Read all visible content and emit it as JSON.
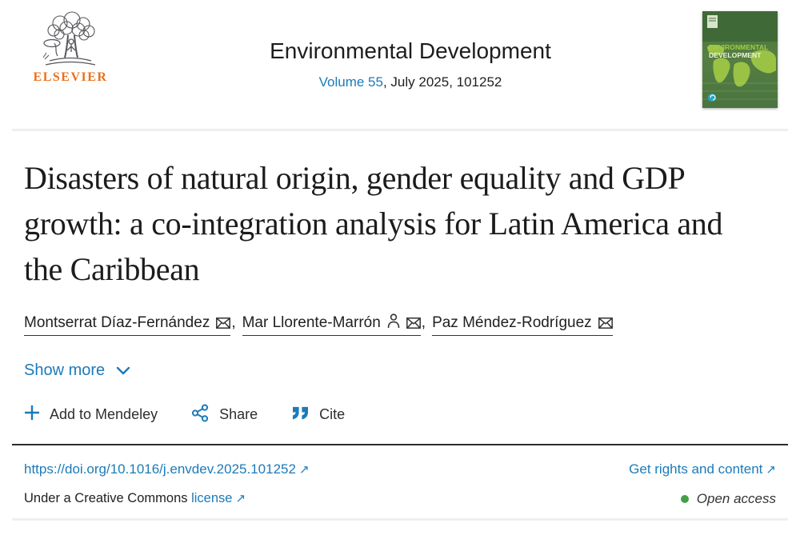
{
  "header": {
    "publisher_wordmark": "ELSEVIER",
    "journal_title": "Environmental Development",
    "volume_link": "Volume 55",
    "issue_rest": ", July 2025, 101252",
    "cover_line1": "ENVIRONMENTAL",
    "cover_line2": "DEVELOPMENT"
  },
  "article": {
    "title": "Disasters of natural origin, gender equality and GDP growth: a co-integration analysis for Latin America and the Caribbean",
    "authors": [
      {
        "name": "Montserrat Díaz-Fernández",
        "icons": [
          "envelope"
        ]
      },
      {
        "name": "Mar Llorente-Marrón",
        "icons": [
          "person",
          "envelope"
        ]
      },
      {
        "name": "Paz Méndez-Rodríguez",
        "icons": [
          "envelope"
        ]
      }
    ],
    "author_separator": ", ",
    "show_more_label": "Show more"
  },
  "actions": {
    "mendeley_label": "Add to Mendeley",
    "share_label": "Share",
    "cite_label": "Cite"
  },
  "footer": {
    "doi_link": "https://doi.org/10.1016/j.envdev.2025.101252",
    "rights_link": "Get rights and content",
    "license_prefix": "Under a Creative Commons ",
    "license_link": "license",
    "open_access_label": "Open access"
  },
  "icons": {
    "external_arrow": "↗"
  },
  "colors": {
    "link_blue": "#1b7bb9",
    "elsevier_orange": "#e9711c",
    "open_access_green": "#43a047",
    "text_dark": "#212121"
  }
}
